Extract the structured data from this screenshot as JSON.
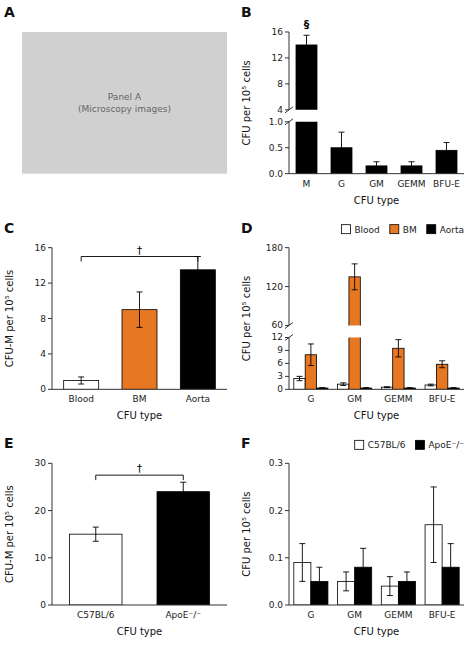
{
  "chart_data": [
    {
      "type": "placeholder",
      "title": "A",
      "color": "#d0d0d0",
      "annotations": [
        "Panel A",
        "(Microscopy images)"
      ],
      "tick_labels": false
    },
    {
      "type": "bar",
      "title": "B",
      "categories": [
        "M",
        "G",
        "GM",
        "GEMM",
        "BFU-E"
      ],
      "values": [
        14.0,
        0.5,
        0.15,
        0.15,
        0.45
      ],
      "errors": [
        1.5,
        0.3,
        0.08,
        0.08,
        0.15
      ],
      "color": "#000000",
      "xlabel": "CFU type",
      "ylabel": "CFU per 10⁵ cells",
      "ylim": [
        0,
        16
      ],
      "ybreak": [
        1,
        4
      ],
      "yticks": [
        {
          "value": 0,
          "label": "0.0"
        },
        0.5,
        {
          "value": 1.0,
          "label": "1.0"
        },
        4,
        8,
        12,
        16
      ],
      "annotations": [
        {
          "text": "§",
          "category": "M"
        }
      ]
    },
    {
      "type": "bar",
      "title": "C",
      "categories": [
        "Blood",
        "BM",
        "Aorta"
      ],
      "values": [
        1.0,
        9.0,
        13.5
      ],
      "errors": [
        0.4,
        2.0,
        1.5
      ],
      "colors": [
        "#FFFFFF",
        "#E87722",
        "#000000"
      ],
      "xlabel": "CFU type",
      "ylabel": "CFU-M per 10⁵ cells",
      "ylim": [
        0,
        16
      ],
      "yticks": [
        0,
        4,
        8,
        12,
        16
      ],
      "annotations": [
        {
          "text": "†",
          "from": "Blood",
          "to": "Aorta",
          "y": 15
        }
      ]
    },
    {
      "type": "bar",
      "title": "D",
      "categories": [
        "G",
        "GM",
        "GEMM",
        "BFU-E"
      ],
      "series": [
        {
          "name": "Blood",
          "color": "#FFFFFF",
          "values": [
            2.5,
            1.2,
            0.5,
            1.0
          ],
          "errors": [
            0.5,
            0.3,
            0.1,
            0.2
          ]
        },
        {
          "name": "BM",
          "color": "#E87722",
          "values": [
            8.0,
            135.0,
            9.5,
            5.8
          ],
          "errors": [
            2.5,
            20.0,
            2.0,
            0.8
          ]
        },
        {
          "name": "Aorta",
          "color": "#000000",
          "values": [
            0.3,
            0.3,
            0.3,
            0.3
          ],
          "errors": [
            0.1,
            0.1,
            0.1,
            0.1
          ]
        }
      ],
      "xlabel": "CFU type",
      "ylabel": "CFU per 10⁵ cells",
      "ylim": [
        0,
        180
      ],
      "ybreak": [
        12,
        60
      ],
      "yticks": [
        0,
        3,
        6,
        9,
        12,
        60,
        120,
        180
      ],
      "legend": "upper right"
    },
    {
      "type": "bar",
      "title": "E",
      "categories": [
        "C57BL/6",
        "ApoE⁻/⁻"
      ],
      "values": [
        15.0,
        24.0
      ],
      "errors": [
        1.5,
        2.0
      ],
      "colors": [
        "#FFFFFF",
        "#000000"
      ],
      "xlabel": "CFU type",
      "ylabel": "CFU-M per 10⁵ cells",
      "ylim": [
        0,
        30
      ],
      "yticks": [
        0,
        10,
        20,
        30
      ],
      "annotations": [
        {
          "text": "†",
          "from": "C57BL/6",
          "to": "ApoE⁻/⁻",
          "y": 27.5
        }
      ]
    },
    {
      "type": "bar",
      "title": "F",
      "categories": [
        "G",
        "GM",
        "GEMM",
        "BFU-E"
      ],
      "series": [
        {
          "name": "C57BL/6",
          "color": "#FFFFFF",
          "values": [
            0.09,
            0.05,
            0.04,
            0.17
          ],
          "errors": [
            0.04,
            0.02,
            0.02,
            0.08
          ]
        },
        {
          "name": "ApoE⁻/⁻",
          "color": "#000000",
          "values": [
            0.05,
            0.08,
            0.05,
            0.08
          ],
          "errors": [
            0.03,
            0.04,
            0.02,
            0.05
          ]
        }
      ],
      "xlabel": "CFU type",
      "ylabel": "CFU per 10⁵ cells",
      "ylim": [
        0,
        0.3
      ],
      "yticks": [
        {
          "value": 0,
          "label": "0.0"
        },
        0.1,
        0.2,
        0.3
      ],
      "legend": "upper right"
    }
  ]
}
